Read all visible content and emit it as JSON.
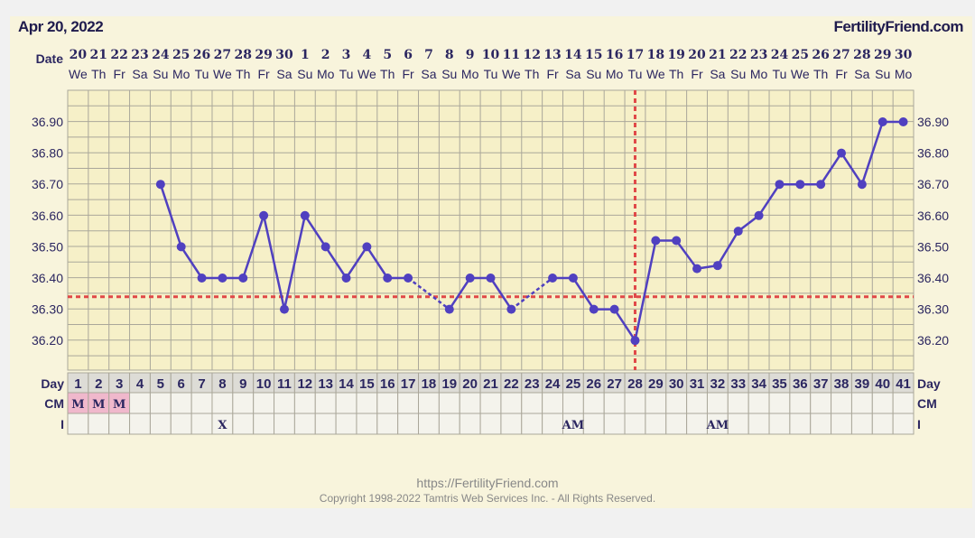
{
  "header": {
    "date": "Apr 20, 2022",
    "brand": "FertilityFriend.com",
    "date_label": "Date",
    "day_label": "Day",
    "cm_label": "CM",
    "i_label": "I"
  },
  "dates": [
    "20",
    "21",
    "22",
    "23",
    "24",
    "25",
    "26",
    "27",
    "28",
    "29",
    "30",
    "1",
    "2",
    "3",
    "4",
    "5",
    "6",
    "7",
    "8",
    "9",
    "10",
    "11",
    "12",
    "13",
    "14",
    "15",
    "16",
    "17",
    "18",
    "19",
    "20",
    "21",
    "22",
    "23",
    "24",
    "25",
    "26",
    "27",
    "28",
    "29",
    "30"
  ],
  "weekdays": [
    "We",
    "Th",
    "Fr",
    "Sa",
    "Su",
    "Mo",
    "Tu",
    "We",
    "Th",
    "Fr",
    "Sa",
    "Su",
    "Mo",
    "Tu",
    "We",
    "Th",
    "Fr",
    "Sa",
    "Su",
    "Mo",
    "Tu",
    "We",
    "Th",
    "Fr",
    "Sa",
    "Su",
    "Mo",
    "Tu",
    "We",
    "Th",
    "Fr",
    "Sa",
    "Su",
    "Mo",
    "Tu",
    "We",
    "Th",
    "Fr",
    "Sa",
    "Su",
    "Mo"
  ],
  "cm": {
    "1": "M",
    "2": "M",
    "3": "M"
  },
  "intercourse": {
    "8": "X",
    "25": "AM",
    "32": "AM"
  },
  "colors": {
    "line": "#5040c0",
    "coverline": "#e04848",
    "cm_bg": "#f0b8cc",
    "grid": "#aaa79a"
  },
  "chart_data": {
    "type": "line",
    "ylim": [
      36.1,
      37.0
    ],
    "yticks": [
      "36.20",
      "36.30",
      "36.40",
      "36.50",
      "36.60",
      "36.70",
      "36.80",
      "36.90"
    ],
    "days": [
      5,
      6,
      7,
      8,
      9,
      10,
      11,
      12,
      13,
      14,
      15,
      16,
      17,
      19,
      20,
      21,
      22,
      24,
      25,
      26,
      27,
      28,
      29,
      30,
      31,
      32,
      33,
      34,
      35,
      36,
      37,
      38,
      39,
      40,
      41
    ],
    "temps": [
      36.7,
      36.5,
      36.4,
      36.4,
      36.4,
      36.6,
      36.3,
      36.6,
      36.5,
      36.4,
      36.5,
      36.4,
      36.4,
      36.3,
      36.4,
      36.4,
      36.3,
      36.4,
      36.4,
      36.3,
      36.3,
      36.2,
      36.52,
      36.52,
      36.43,
      36.44,
      36.55,
      36.6,
      36.7,
      36.7,
      36.7,
      36.8,
      36.7,
      36.9,
      36.9
    ],
    "coverline": 36.34,
    "ovulation_day": 28
  },
  "footer": {
    "url": "https://FertilityFriend.com",
    "copyright": "Copyright 1998-2022 Tamtris Web Services Inc. - All Rights Reserved."
  }
}
